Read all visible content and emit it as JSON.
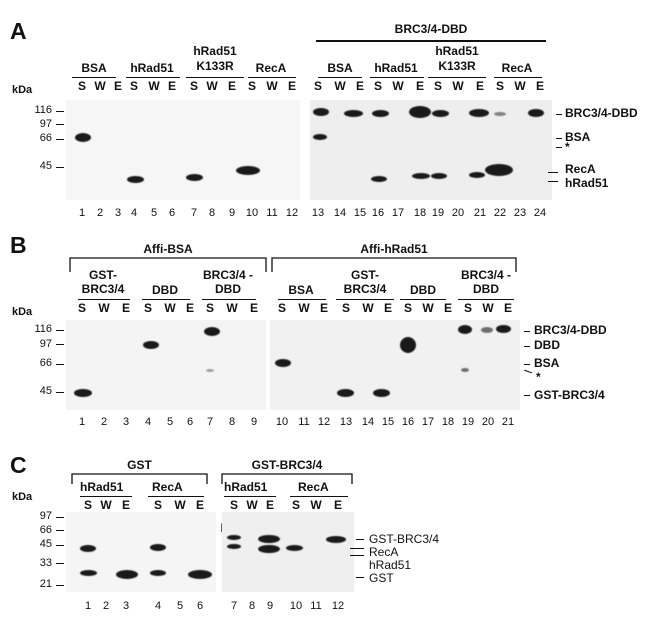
{
  "panelA": {
    "label": "A",
    "kda": "kDa",
    "mw": [
      "116",
      "97",
      "66",
      "45"
    ],
    "groups_left": [
      "BSA",
      "hRad51",
      "hRad51 K133R",
      "RecA"
    ],
    "group_right_title": "BRC3/4-DBD",
    "groups_right": [
      "BSA",
      "hRad51",
      "hRad51 K133R",
      "RecA"
    ],
    "swe": [
      "S",
      "W",
      "E"
    ],
    "lanes": [
      "1",
      "2",
      "3",
      "4",
      "5",
      "6",
      "7",
      "8",
      "9",
      "10",
      "11",
      "12",
      "13",
      "14",
      "15",
      "16",
      "17",
      "18",
      "19",
      "20",
      "21",
      "22",
      "23",
      "24"
    ],
    "side_labels": [
      "BRC3/4-DBD",
      "BSA",
      "*",
      "RecA",
      "hRad51"
    ]
  },
  "panelB": {
    "label": "B",
    "kda": "kDa",
    "mw": [
      "116",
      "97",
      "66",
      "45"
    ],
    "title_left": "Affi-BSA",
    "title_right": "Affi-hRad51",
    "groups_left": [
      "GST-BRC3/4",
      "DBD",
      "BRC3/4 -DBD"
    ],
    "groups_right": [
      "BSA",
      "GST-BRC3/4",
      "DBD",
      "BRC3/4 -DBD"
    ],
    "swe": [
      "S",
      "W",
      "E"
    ],
    "lanes": [
      "1",
      "2",
      "3",
      "4",
      "5",
      "6",
      "7",
      "8",
      "9",
      "10",
      "11",
      "12",
      "13",
      "14",
      "15",
      "16",
      "17",
      "18",
      "19",
      "20",
      "21"
    ],
    "side_labels": [
      "BRC3/4-DBD",
      "DBD",
      "BSA",
      "*",
      "GST-BRC3/4"
    ]
  },
  "panelC": {
    "label": "C",
    "kda": "kDa",
    "mw": [
      "97",
      "66",
      "45",
      "33",
      "21"
    ],
    "title_left": "GST",
    "title_right": "GST-BRC3/4",
    "groups": [
      "hRad51",
      "RecA",
      "hRad51",
      "RecA"
    ],
    "swe": [
      "S",
      "W",
      "E"
    ],
    "lanes": [
      "1",
      "2",
      "3",
      "4",
      "5",
      "6",
      "7",
      "8",
      "9",
      "10",
      "11",
      "12"
    ],
    "side_labels": [
      "GST-BRC3/4",
      "RecA",
      "hRad51",
      "GST"
    ]
  }
}
